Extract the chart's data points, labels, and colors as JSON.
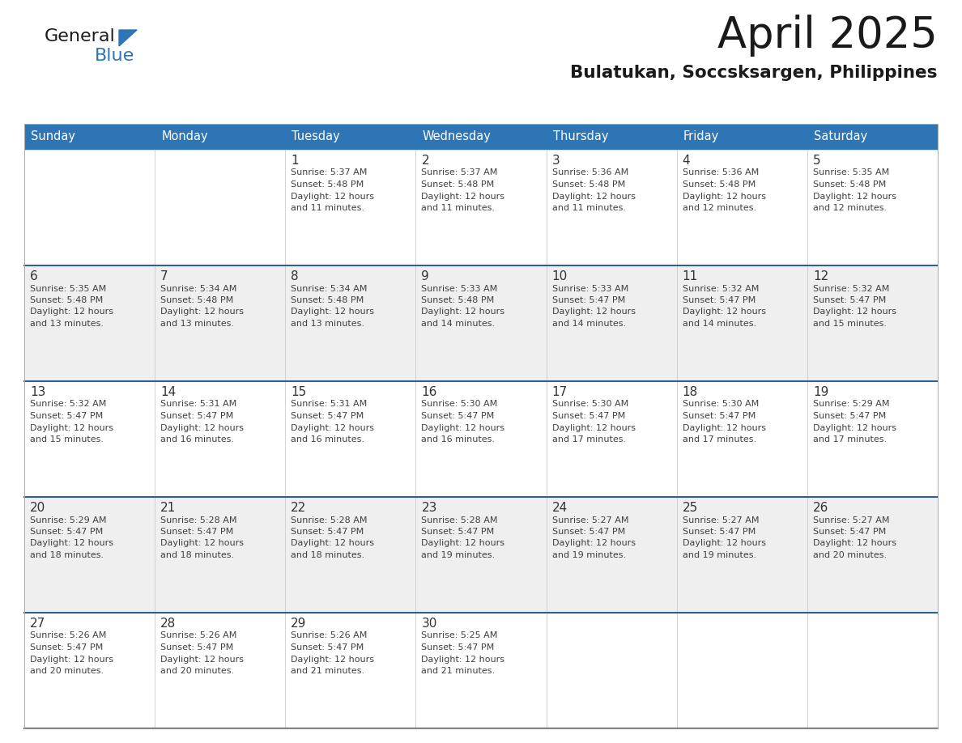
{
  "title": "April 2025",
  "subtitle": "Bulatukan, Soccsksargen, Philippines",
  "header_bg": "#2E75B6",
  "header_text_color": "#FFFFFF",
  "cell_bg_odd": "#EFEFEF",
  "cell_bg_even": "#FFFFFF",
  "row_sep_color": "#2E6096",
  "col_sep_color": "#CCCCCC",
  "day_names": [
    "Sunday",
    "Monday",
    "Tuesday",
    "Wednesday",
    "Thursday",
    "Friday",
    "Saturday"
  ],
  "text_color": "#404040",
  "number_color": "#333333",
  "logo_general_color": "#1a1a1a",
  "logo_blue_color": "#2E75B6",
  "days": [
    {
      "day": 1,
      "col": 2,
      "row": 0,
      "sunrise": "5:37 AM",
      "sunset": "5:48 PM",
      "daylight_mins": "11 minutes."
    },
    {
      "day": 2,
      "col": 3,
      "row": 0,
      "sunrise": "5:37 AM",
      "sunset": "5:48 PM",
      "daylight_mins": "11 minutes."
    },
    {
      "day": 3,
      "col": 4,
      "row": 0,
      "sunrise": "5:36 AM",
      "sunset": "5:48 PM",
      "daylight_mins": "11 minutes."
    },
    {
      "day": 4,
      "col": 5,
      "row": 0,
      "sunrise": "5:36 AM",
      "sunset": "5:48 PM",
      "daylight_mins": "12 minutes."
    },
    {
      "day": 5,
      "col": 6,
      "row": 0,
      "sunrise": "5:35 AM",
      "sunset": "5:48 PM",
      "daylight_mins": "12 minutes."
    },
    {
      "day": 6,
      "col": 0,
      "row": 1,
      "sunrise": "5:35 AM",
      "sunset": "5:48 PM",
      "daylight_mins": "13 minutes."
    },
    {
      "day": 7,
      "col": 1,
      "row": 1,
      "sunrise": "5:34 AM",
      "sunset": "5:48 PM",
      "daylight_mins": "13 minutes."
    },
    {
      "day": 8,
      "col": 2,
      "row": 1,
      "sunrise": "5:34 AM",
      "sunset": "5:48 PM",
      "daylight_mins": "13 minutes."
    },
    {
      "day": 9,
      "col": 3,
      "row": 1,
      "sunrise": "5:33 AM",
      "sunset": "5:48 PM",
      "daylight_mins": "14 minutes."
    },
    {
      "day": 10,
      "col": 4,
      "row": 1,
      "sunrise": "5:33 AM",
      "sunset": "5:47 PM",
      "daylight_mins": "14 minutes."
    },
    {
      "day": 11,
      "col": 5,
      "row": 1,
      "sunrise": "5:32 AM",
      "sunset": "5:47 PM",
      "daylight_mins": "14 minutes."
    },
    {
      "day": 12,
      "col": 6,
      "row": 1,
      "sunrise": "5:32 AM",
      "sunset": "5:47 PM",
      "daylight_mins": "15 minutes."
    },
    {
      "day": 13,
      "col": 0,
      "row": 2,
      "sunrise": "5:32 AM",
      "sunset": "5:47 PM",
      "daylight_mins": "15 minutes."
    },
    {
      "day": 14,
      "col": 1,
      "row": 2,
      "sunrise": "5:31 AM",
      "sunset": "5:47 PM",
      "daylight_mins": "16 minutes."
    },
    {
      "day": 15,
      "col": 2,
      "row": 2,
      "sunrise": "5:31 AM",
      "sunset": "5:47 PM",
      "daylight_mins": "16 minutes."
    },
    {
      "day": 16,
      "col": 3,
      "row": 2,
      "sunrise": "5:30 AM",
      "sunset": "5:47 PM",
      "daylight_mins": "16 minutes."
    },
    {
      "day": 17,
      "col": 4,
      "row": 2,
      "sunrise": "5:30 AM",
      "sunset": "5:47 PM",
      "daylight_mins": "17 minutes."
    },
    {
      "day": 18,
      "col": 5,
      "row": 2,
      "sunrise": "5:30 AM",
      "sunset": "5:47 PM",
      "daylight_mins": "17 minutes."
    },
    {
      "day": 19,
      "col": 6,
      "row": 2,
      "sunrise": "5:29 AM",
      "sunset": "5:47 PM",
      "daylight_mins": "17 minutes."
    },
    {
      "day": 20,
      "col": 0,
      "row": 3,
      "sunrise": "5:29 AM",
      "sunset": "5:47 PM",
      "daylight_mins": "18 minutes."
    },
    {
      "day": 21,
      "col": 1,
      "row": 3,
      "sunrise": "5:28 AM",
      "sunset": "5:47 PM",
      "daylight_mins": "18 minutes."
    },
    {
      "day": 22,
      "col": 2,
      "row": 3,
      "sunrise": "5:28 AM",
      "sunset": "5:47 PM",
      "daylight_mins": "18 minutes."
    },
    {
      "day": 23,
      "col": 3,
      "row": 3,
      "sunrise": "5:28 AM",
      "sunset": "5:47 PM",
      "daylight_mins": "19 minutes."
    },
    {
      "day": 24,
      "col": 4,
      "row": 3,
      "sunrise": "5:27 AM",
      "sunset": "5:47 PM",
      "daylight_mins": "19 minutes."
    },
    {
      "day": 25,
      "col": 5,
      "row": 3,
      "sunrise": "5:27 AM",
      "sunset": "5:47 PM",
      "daylight_mins": "19 minutes."
    },
    {
      "day": 26,
      "col": 6,
      "row": 3,
      "sunrise": "5:27 AM",
      "sunset": "5:47 PM",
      "daylight_mins": "20 minutes."
    },
    {
      "day": 27,
      "col": 0,
      "row": 4,
      "sunrise": "5:26 AM",
      "sunset": "5:47 PM",
      "daylight_mins": "20 minutes."
    },
    {
      "day": 28,
      "col": 1,
      "row": 4,
      "sunrise": "5:26 AM",
      "sunset": "5:47 PM",
      "daylight_mins": "20 minutes."
    },
    {
      "day": 29,
      "col": 2,
      "row": 4,
      "sunrise": "5:26 AM",
      "sunset": "5:47 PM",
      "daylight_mins": "21 minutes."
    },
    {
      "day": 30,
      "col": 3,
      "row": 4,
      "sunrise": "5:25 AM",
      "sunset": "5:47 PM",
      "daylight_mins": "21 minutes."
    }
  ]
}
